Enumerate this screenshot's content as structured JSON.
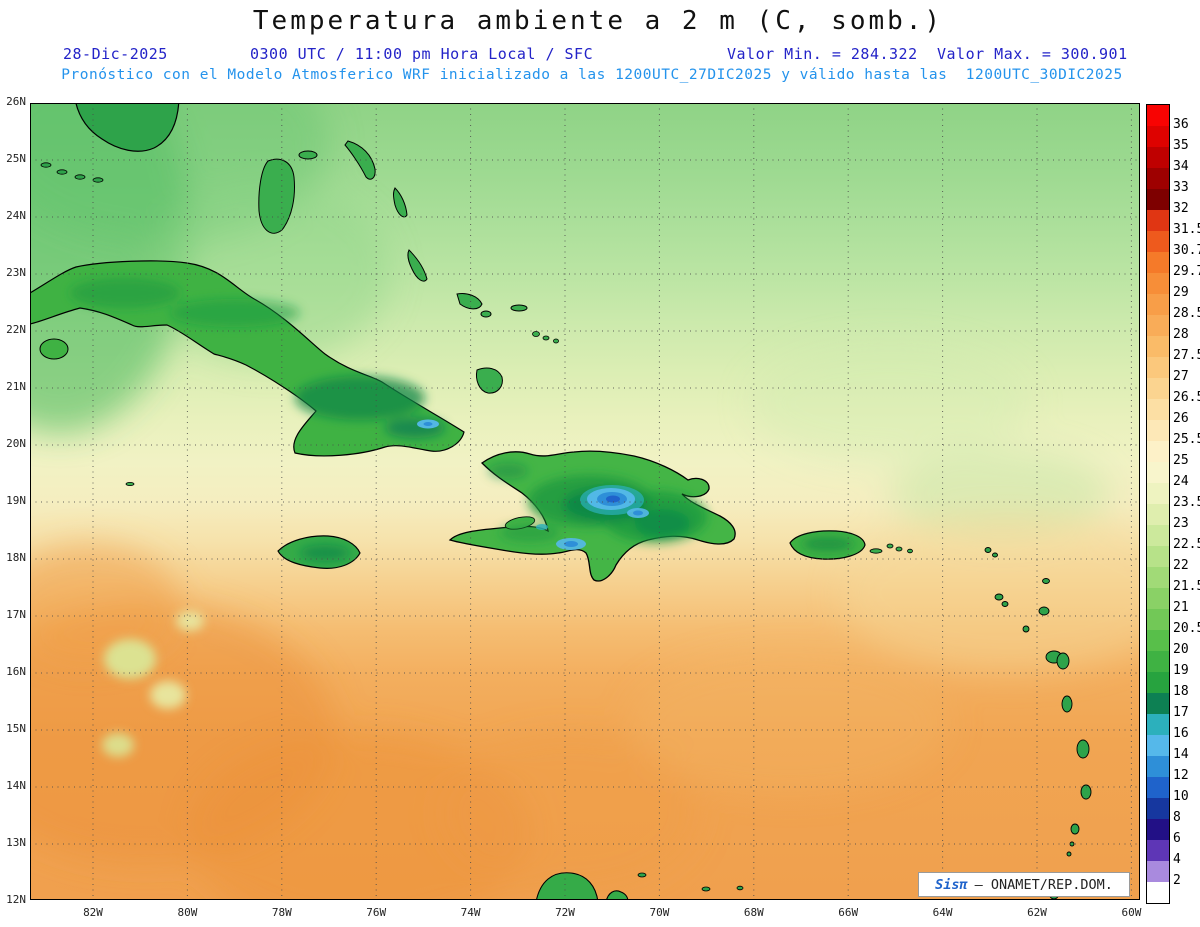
{
  "header": {
    "title": "Temperatura ambiente a 2 m (C, somb.)",
    "date": "28-Dic-2025",
    "time": "0300 UTC / 11:00 pm Hora Local / SFC",
    "valor_min": "Valor Min. = 284.322",
    "valor_max": "Valor Max. = 300.901",
    "forecast": "Pronóstico con el Modelo Atmosferico WRF inicializado a las 1200UTC_27DIC2025 y válido hasta las  1200UTC_30DIC2025"
  },
  "map": {
    "lat_ticks": [
      "26N",
      "25N",
      "24N",
      "23N",
      "22N",
      "21N",
      "20N",
      "19N",
      "18N",
      "17N",
      "16N",
      "15N",
      "14N",
      "13N",
      "12N"
    ],
    "lon_ticks": [
      "82W",
      "80W",
      "78W",
      "76W",
      "74W",
      "72W",
      "70W",
      "68W",
      "66W",
      "64W",
      "62W",
      "60W"
    ],
    "grid_style": "dotted",
    "region": "Caribbean / Antilles"
  },
  "colorbar": {
    "unit": "C",
    "segments": [
      {
        "c": "#f80302",
        "v": "36"
      },
      {
        "c": "#de0200",
        "v": "35"
      },
      {
        "c": "#bf0000",
        "v": "34"
      },
      {
        "c": "#9e0000",
        "v": "33"
      },
      {
        "c": "#7e0000",
        "v": "32"
      },
      {
        "c": "#e03613",
        "v": "31.5"
      },
      {
        "c": "#ee5a1d",
        "v": "30.7"
      },
      {
        "c": "#f57a29",
        "v": "29.7"
      },
      {
        "c": "#f78e38",
        "v": "29"
      },
      {
        "c": "#f89e48",
        "v": "28.5"
      },
      {
        "c": "#f9ac58",
        "v": "28"
      },
      {
        "c": "#fabb68",
        "v": "27.5"
      },
      {
        "c": "#fbc87c",
        "v": "27"
      },
      {
        "c": "#fbd490",
        "v": "26.5"
      },
      {
        "c": "#fcdfa4",
        "v": "26"
      },
      {
        "c": "#fde8b7",
        "v": "25.5"
      },
      {
        "c": "#fdf1c8",
        "v": "25"
      },
      {
        "c": "#f8f5cc",
        "v": "24"
      },
      {
        "c": "#eef3c0",
        "v": "23.5"
      },
      {
        "c": "#dfeeae",
        "v": "23"
      },
      {
        "c": "#cce99c",
        "v": "22.5"
      },
      {
        "c": "#b7e289",
        "v": "22"
      },
      {
        "c": "#a1da77",
        "v": "21.5"
      },
      {
        "c": "#8ad166",
        "v": "21"
      },
      {
        "c": "#72c857",
        "v": "20.5"
      },
      {
        "c": "#58bf4a",
        "v": "20"
      },
      {
        "c": "#3fb243",
        "v": "19"
      },
      {
        "c": "#27a33f",
        "v": "18"
      },
      {
        "c": "#0d8053",
        "v": "17"
      },
      {
        "c": "#2cb0bc",
        "v": "16"
      },
      {
        "c": "#55b8ea",
        "v": "14"
      },
      {
        "c": "#2e8fd8",
        "v": "12"
      },
      {
        "c": "#1f63cb",
        "v": "10"
      },
      {
        "c": "#16379f",
        "v": "8"
      },
      {
        "c": "#221086",
        "v": "6"
      },
      {
        "c": "#5e36b6",
        "v": "4"
      },
      {
        "c": "#a98ade",
        "v": "2"
      },
      {
        "c": "#ffffff",
        "v": ""
      }
    ]
  },
  "logo": {
    "brand": "Sisπ",
    "org": "— ONAMET/REP.DOM."
  },
  "colors": {
    "header_blue": "#2323c8",
    "forecast_blue": "#2493ec",
    "cold_core_blue": "#2e8fd8",
    "land_green": "#3fb243",
    "warm_orange": "#f0a04e"
  }
}
